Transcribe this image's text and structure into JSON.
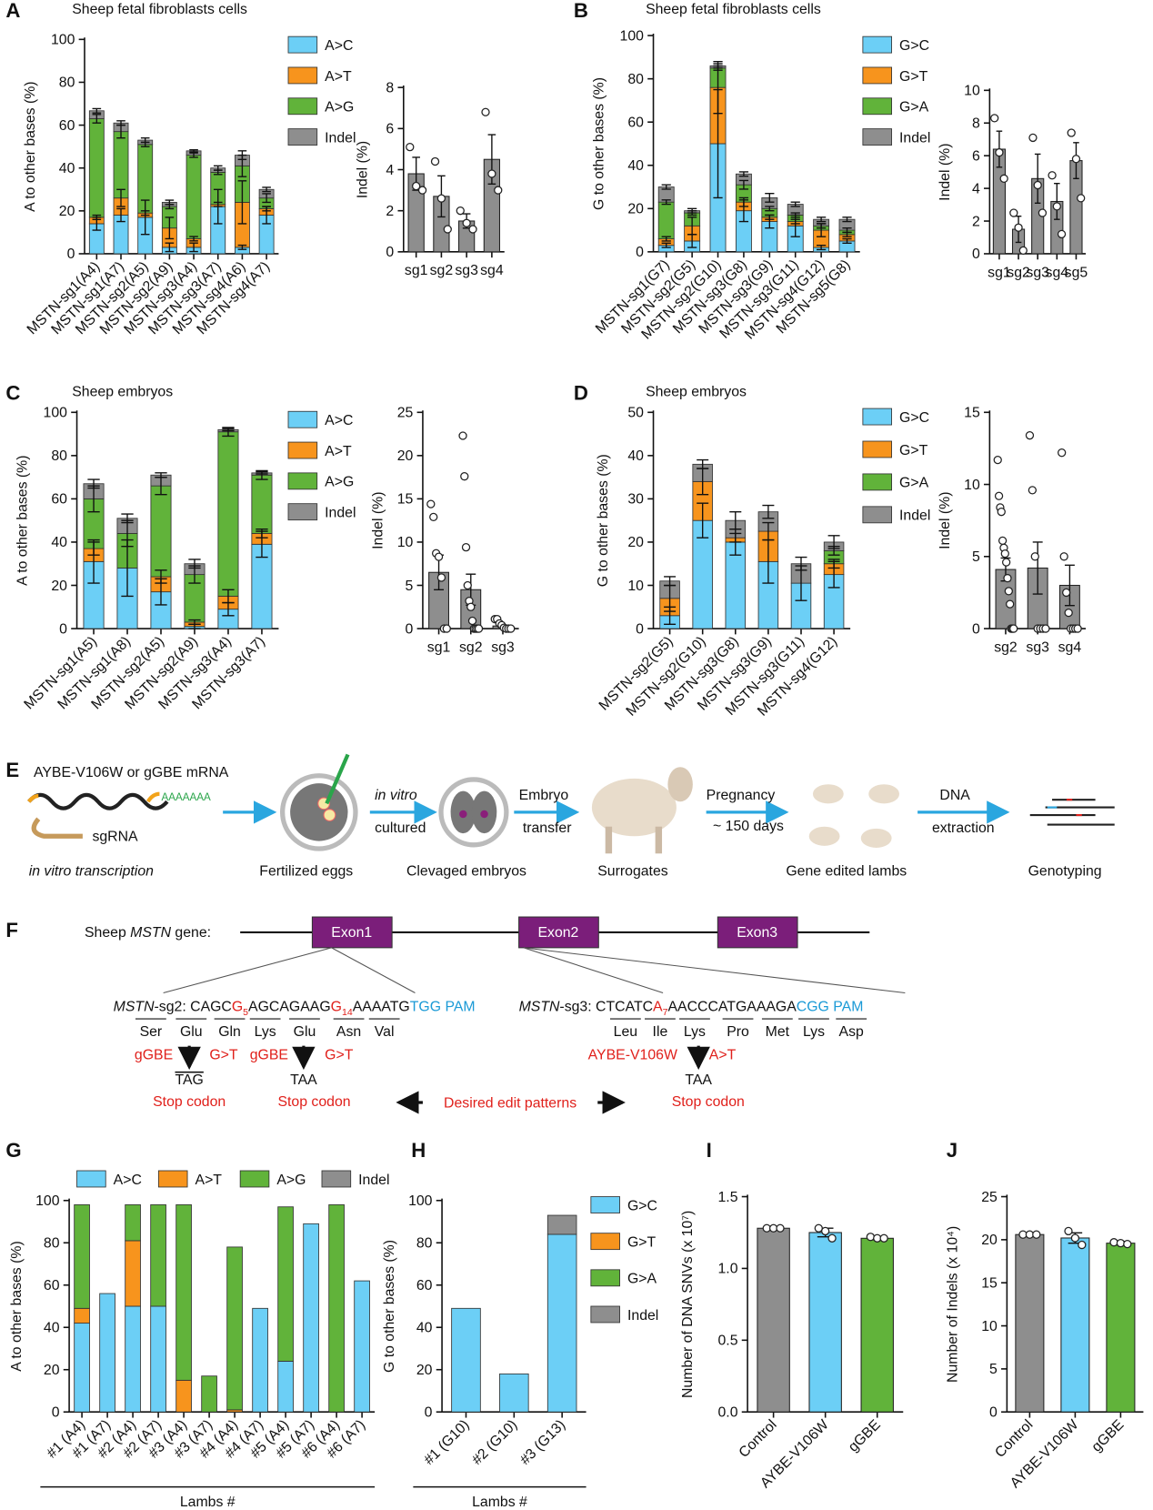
{
  "chart_data": [
    {
      "type": "stacked_bar",
      "panel": "A",
      "title": "Sheep fetal fibroblasts cells",
      "y_label": "A to other bases (%)",
      "categories": [
        "MSTN-sg1(A4)",
        "MSTN-sg1(A7)",
        "MSTN-sg2(A5)",
        "MSTN-sg2(A9)",
        "MSTN-sg3(A4)",
        "MSTN-sg3(A7)",
        "MSTN-sg4(A6)",
        "MSTN-sg4(A7)"
      ],
      "series": [
        {
          "name": "A>C",
          "color": "#6ccff6",
          "values": [
            14,
            18,
            17,
            3,
            3,
            22,
            3,
            18
          ],
          "errors": [
            3,
            3,
            8,
            2,
            2,
            8,
            1,
            4
          ]
        },
        {
          "name": "A>T",
          "color": "#f7941d",
          "values": [
            3,
            8,
            2,
            9,
            4,
            1,
            21,
            3
          ],
          "errors": [
            1,
            4,
            1,
            5,
            1,
            1,
            10,
            1
          ]
        },
        {
          "name": "A>G",
          "color": "#61b33a",
          "values": [
            46,
            31,
            32,
            10,
            39,
            15,
            17,
            5
          ],
          "errors": [
            2,
            3,
            1,
            1,
            1,
            1,
            5,
            2
          ]
        },
        {
          "name": "Indel",
          "color": "#8e8e8e",
          "values": [
            3.7,
            4,
            2,
            2,
            2,
            2,
            5,
            4
          ],
          "errors": [
            1,
            1,
            1,
            1,
            0.5,
            1,
            2,
            1
          ]
        }
      ],
      "ylim": [
        0,
        100
      ],
      "yticks": [
        0,
        20,
        40,
        60,
        80,
        100
      ],
      "legend": "right"
    },
    {
      "type": "bar",
      "y_label": "Indel (%)",
      "categories": [
        "sg1",
        "sg2",
        "sg3",
        "sg4"
      ],
      "color": "#8e8e8e",
      "values": [
        3.8,
        2.7,
        1.5,
        4.5
      ],
      "errors": [
        0.8,
        1.0,
        0.35,
        1.2
      ],
      "points": [
        [
          5.1,
          3.2,
          3.0
        ],
        [
          4.4,
          2.6,
          1.1
        ],
        [
          2.0,
          1.4,
          1.1
        ],
        [
          6.8,
          3.8,
          3.0
        ]
      ],
      "ylim": [
        0,
        8
      ],
      "yticks": [
        0,
        2,
        4,
        6,
        8
      ]
    },
    {
      "type": "stacked_bar",
      "panel": "B",
      "title": "Sheep fetal fibroblasts cells",
      "y_label": "G to other bases (%)",
      "categories": [
        "MSTN-sg1(G7)",
        "MSTN-sg2(G5)",
        "MSTN-sg2(G10)",
        "MSTN-sg3(G8)",
        "MSTN-sg3(G9)",
        "MSTN-sg3(G11)",
        "MSTN-sg4(G12)",
        "MSTN-sg5(G8)"
      ],
      "series": [
        {
          "name": "G>C",
          "color": "#6ccff6",
          "values": [
            3,
            5,
            50,
            19,
            14,
            12,
            2,
            5
          ],
          "errors": [
            1,
            3,
            25,
            5,
            3,
            5,
            1,
            1
          ]
        },
        {
          "name": "G>T",
          "color": "#f7941d",
          "values": [
            3,
            7,
            26,
            4,
            2,
            2,
            8,
            3
          ],
          "errors": [
            1,
            4,
            12,
            2,
            1,
            1,
            3,
            1
          ]
        },
        {
          "name": "G>A",
          "color": "#61b33a",
          "values": [
            17,
            6,
            9,
            8,
            4,
            3,
            2,
            2
          ],
          "errors": [
            1,
            1,
            1,
            2,
            1,
            1,
            1,
            1
          ]
        },
        {
          "name": "Indel",
          "color": "#8e8e8e",
          "values": [
            7,
            1,
            1,
            5,
            5,
            5,
            3,
            5
          ],
          "errors": [
            1,
            1,
            1,
            1,
            2,
            1,
            1,
            1
          ]
        }
      ],
      "ylim": [
        0,
        100
      ],
      "yticks": [
        0,
        20,
        40,
        60,
        80,
        100
      ],
      "legend": "right"
    },
    {
      "type": "bar",
      "y_label": "Indel (%)",
      "categories": [
        "sg1",
        "sg2",
        "sg3",
        "sg4",
        "sg5"
      ],
      "color": "#8e8e8e",
      "values": [
        6.4,
        1.5,
        4.6,
        3.2,
        5.7
      ],
      "errors": [
        1.1,
        0.8,
        1.5,
        1.1,
        1.1
      ],
      "points": [
        [
          8.3,
          6.2,
          4.6
        ],
        [
          2.5,
          1.6,
          0.2
        ],
        [
          7.1,
          4.2,
          2.5
        ],
        [
          4.8,
          2.9,
          1.2
        ],
        [
          7.4,
          5.8,
          3.4
        ]
      ],
      "ylim": [
        0,
        10
      ],
      "yticks": [
        0,
        2,
        4,
        6,
        8,
        10
      ]
    },
    {
      "type": "stacked_bar",
      "panel": "C",
      "title": "Sheep embryos",
      "y_label": "A to other bases (%)",
      "categories": [
        "MSTN-sg1(A5)",
        "MSTN-sg1(A8)",
        "MSTN-sg2(A5)",
        "MSTN-sg2(A9)",
        "MSTN-sg3(A4)",
        "MSTN-sg3(A7)"
      ],
      "series": [
        {
          "name": "A>C",
          "color": "#6ccff6",
          "values": [
            31,
            28,
            17,
            1,
            9,
            39
          ],
          "errors": [
            10,
            13,
            6,
            1,
            3,
            6
          ]
        },
        {
          "name": "A>T",
          "color": "#f7941d",
          "values": [
            6,
            0,
            7,
            2,
            6,
            5
          ],
          "errors": [
            3,
            0,
            3,
            1,
            3,
            2
          ]
        },
        {
          "name": "A>G",
          "color": "#61b33a",
          "values": [
            23,
            16,
            42,
            22,
            76,
            27
          ],
          "errors": [
            6,
            6,
            4,
            4,
            2,
            2
          ]
        },
        {
          "name": "Indel",
          "color": "#8e8e8e",
          "values": [
            7,
            7,
            5,
            5,
            1,
            1
          ],
          "errors": [
            2,
            2,
            1,
            2,
            0.5,
            0.5
          ]
        }
      ],
      "ylim": [
        0,
        100
      ],
      "yticks": [
        0,
        20,
        40,
        60,
        80,
        100
      ],
      "legend": "right"
    },
    {
      "type": "bar",
      "y_label": "Indel (%)",
      "categories": [
        "sg1",
        "sg2",
        "sg3"
      ],
      "color": "#8e8e8e",
      "values": [
        6.5,
        4.5,
        0.3
      ],
      "errors": [
        2,
        1.8,
        0.1
      ],
      "points": [
        [
          14.4,
          12.9,
          8.7,
          8.3,
          5.9,
          0,
          0
        ],
        [
          22.3,
          17.6,
          9.4,
          5.0,
          3.2,
          2.5,
          0.9,
          0,
          0,
          0,
          0
        ],
        [
          1.1,
          1.1,
          0.6,
          0.4,
          0.1,
          0,
          0,
          0
        ]
      ],
      "ylim": [
        0,
        25
      ],
      "yticks": [
        0,
        5,
        10,
        15,
        20,
        25
      ]
    },
    {
      "type": "stacked_bar",
      "panel": "D",
      "title": "Sheep embryos",
      "y_label": "G to other bases (%)",
      "categories": [
        "MSTN-sg2(G5)",
        "MSTN-sg2(G10)",
        "MSTN-sg3(G8)",
        "MSTN-sg3(G9)",
        "MSTN-sg3(G11)",
        "MSTN-sg4(G12)"
      ],
      "series": [
        {
          "name": "G>C",
          "color": "#6ccff6",
          "values": [
            3,
            25,
            20,
            15.5,
            10.5,
            12.5
          ],
          "errors": [
            2,
            4,
            3,
            5,
            4,
            3
          ]
        },
        {
          "name": "G>T",
          "color": "#f7941d",
          "values": [
            4,
            9,
            1,
            7,
            0,
            2.5
          ],
          "errors": [
            3,
            3,
            1,
            2,
            0,
            1
          ]
        },
        {
          "name": "G>A",
          "color": "#61b33a",
          "values": [
            0,
            0,
            0,
            0,
            0,
            3
          ],
          "errors": [
            0,
            0,
            0,
            0,
            0,
            1
          ]
        },
        {
          "name": "Indel",
          "color": "#8e8e8e",
          "values": [
            4,
            4,
            4,
            4.5,
            4.5,
            2
          ],
          "errors": [
            1,
            1,
            2,
            1.5,
            1.5,
            1.5
          ]
        }
      ],
      "ylim": [
        0,
        50
      ],
      "yticks": [
        0,
        10,
        20,
        30,
        40,
        50
      ],
      "legend": "right"
    },
    {
      "type": "bar",
      "y_label": "Indel (%)",
      "categories": [
        "sg2",
        "sg3",
        "sg4"
      ],
      "color": "#8e8e8e",
      "values": [
        4.1,
        4.2,
        3.0
      ],
      "errors": [
        0.8,
        1.8,
        1.4
      ],
      "points": [
        [
          11.7,
          9.2,
          8.4,
          8.1,
          6.1,
          5.6,
          5.2,
          4.6,
          3.5,
          2.6,
          1.7,
          0,
          0,
          0
        ],
        [
          13.4,
          9.6,
          5.0,
          0,
          0,
          0,
          0
        ],
        [
          12.2,
          5.0,
          2.5,
          1.1,
          0,
          0,
          0,
          0
        ]
      ],
      "ylim": [
        0,
        15
      ],
      "yticks": [
        0,
        5,
        10,
        15
      ]
    },
    {
      "type": "stacked_bar",
      "panel": "G",
      "y_label": "A to other bases (%)",
      "x_label": "Lambs #",
      "categories": [
        "#1 (A4)",
        "#1 (A7)",
        "#2 (A4)",
        "#2 (A7)",
        "#3 (A4)",
        "#3 (A7)",
        "#4 (A4)",
        "#4 (A7)",
        "#5 (A4)",
        "#5 (A7)",
        "#6 (A4)",
        "#6 (A7)"
      ],
      "series": [
        {
          "name": "A>C",
          "color": "#6ccff6",
          "values": [
            42,
            56,
            50,
            50,
            0,
            0,
            0,
            49,
            24,
            89,
            0,
            62
          ]
        },
        {
          "name": "A>T",
          "color": "#f7941d",
          "values": [
            7,
            0,
            31,
            0,
            15,
            0,
            1,
            0,
            0,
            0,
            0,
            0
          ]
        },
        {
          "name": "A>G",
          "color": "#61b33a",
          "values": [
            49,
            0,
            17,
            48,
            83,
            17,
            77,
            0,
            73,
            0,
            98,
            0
          ]
        },
        {
          "name": "Indel",
          "color": "#8e8e8e",
          "values": [
            0,
            0,
            0,
            0,
            0,
            0,
            0,
            0,
            0,
            0,
            0,
            0
          ]
        }
      ],
      "ylim": [
        0,
        100
      ],
      "yticks": [
        0,
        20,
        40,
        60,
        80,
        100
      ],
      "legend": "top"
    },
    {
      "type": "stacked_bar",
      "panel": "H",
      "y_label": "G to other bases (%)",
      "x_label": "Lambs #",
      "categories": [
        "#1 (G10)",
        "#2 (G10)",
        "#3 (G13)"
      ],
      "series": [
        {
          "name": "G>C",
          "color": "#6ccff6",
          "values": [
            49,
            18,
            84
          ]
        },
        {
          "name": "G>T",
          "color": "#f7941d",
          "values": [
            0,
            0,
            0
          ]
        },
        {
          "name": "G>A",
          "color": "#61b33a",
          "values": [
            0,
            0,
            0
          ]
        },
        {
          "name": "Indel",
          "color": "#8e8e8e",
          "values": [
            0,
            0,
            9
          ]
        }
      ],
      "ylim": [
        0,
        100
      ],
      "yticks": [
        0,
        20,
        40,
        60,
        80,
        100
      ],
      "legend": "right"
    },
    {
      "type": "bar",
      "panel": "I",
      "y_label": "Number of DNA SNVs (x 10⁷)",
      "categories": [
        "Control",
        "AYBE-V106W",
        "gGBE"
      ],
      "colors": [
        "#8e8e8e",
        "#6ccff6",
        "#61b33a"
      ],
      "values": [
        1.28,
        1.25,
        1.21
      ],
      "errors": [
        0.01,
        0.03,
        0.01
      ],
      "points": [
        [
          1.28,
          1.28,
          1.28
        ],
        [
          1.28,
          1.26,
          1.21
        ],
        [
          1.22,
          1.21,
          1.21
        ]
      ],
      "ylim": [
        0,
        1.5
      ],
      "yticks": [
        {
          "value": 0,
          "label": "0.0"
        },
        0.5,
        {
          "value": 1,
          "label": "1.0"
        },
        1.5
      ]
    },
    {
      "type": "bar",
      "panel": "J",
      "y_label": "Number of Indels (x 10⁴)",
      "categories": [
        "Control",
        "AYBE-V106W",
        "gGBE"
      ],
      "colors": [
        "#8e8e8e",
        "#6ccff6",
        "#61b33a"
      ],
      "values": [
        20.6,
        20.2,
        19.6
      ],
      "errors": [
        0.1,
        0.6,
        0.2
      ],
      "points": [
        [
          20.6,
          20.6,
          20.6
        ],
        [
          21.0,
          20.2,
          19.4
        ],
        [
          19.7,
          19.6,
          19.5
        ]
      ],
      "ylim": [
        0,
        25
      ],
      "yticks": [
        0,
        5,
        10,
        15,
        20,
        25
      ]
    }
  ],
  "diagram_e": {
    "panel": "E",
    "mrna": "AYBE-V106W or gGBE mRNA",
    "polya": "AAAAAAA",
    "sgrna": "sgRNA",
    "transcription": "in vitro transcription",
    "eggs": "Fertilized eggs",
    "culture_italic": "in vitro",
    "culture": "cultured",
    "embryos": "Clevaged embryos",
    "transfer_1": "Embryo",
    "transfer_2": "transfer",
    "surrogates": "Surrogates",
    "pregnancy_1": "Pregnancy",
    "pregnancy_2": "~ 150 days",
    "lambs": "Gene edited lambs",
    "dna_1": "DNA",
    "dna_2": "extraction",
    "genotyping": "Genotyping"
  },
  "diagram_f": {
    "panel": "F",
    "gene_1": "Sheep",
    "gene_2": "MSTN",
    "gene_3": "gene:",
    "exons": [
      "Exon1",
      "Exon2",
      "Exon3"
    ],
    "sg2": {
      "gene": "MSTN",
      "name": "-sg2:",
      "seq": [
        "CAGC",
        "G",
        "5",
        "AGCAGAAG",
        "G",
        "14",
        "AAAATG"
      ],
      "pam_seq": "TGG",
      "pam": "PAM",
      "codons": [
        "Ser",
        "Glu",
        "Gln",
        "Lys",
        "Glu",
        "Asn",
        "Val"
      ],
      "edits": [
        {
          "editor": "gGBE",
          "change": "G>T",
          "codon": "TAG",
          "result": "Stop codon"
        },
        {
          "editor": "gGBE",
          "change": "G>T",
          "codon": "TAA",
          "result": "Stop codon"
        }
      ]
    },
    "sg3": {
      "gene": "MSTN",
      "name": "-sg3:",
      "seq": [
        "CTCATC",
        "A",
        "7",
        "AACCCATGAAAGA"
      ],
      "pam_seq": "CGG",
      "pam": "PAM",
      "codons": [
        "Leu",
        "Ile",
        "Lys",
        "Pro",
        "Met",
        "Lys",
        "Asp"
      ],
      "edits": [
        {
          "editor": "AYBE-V106W",
          "change": "A>T",
          "codon": "TAA",
          "result": "Stop codon"
        }
      ]
    },
    "desired": "Desired edit patterns"
  }
}
